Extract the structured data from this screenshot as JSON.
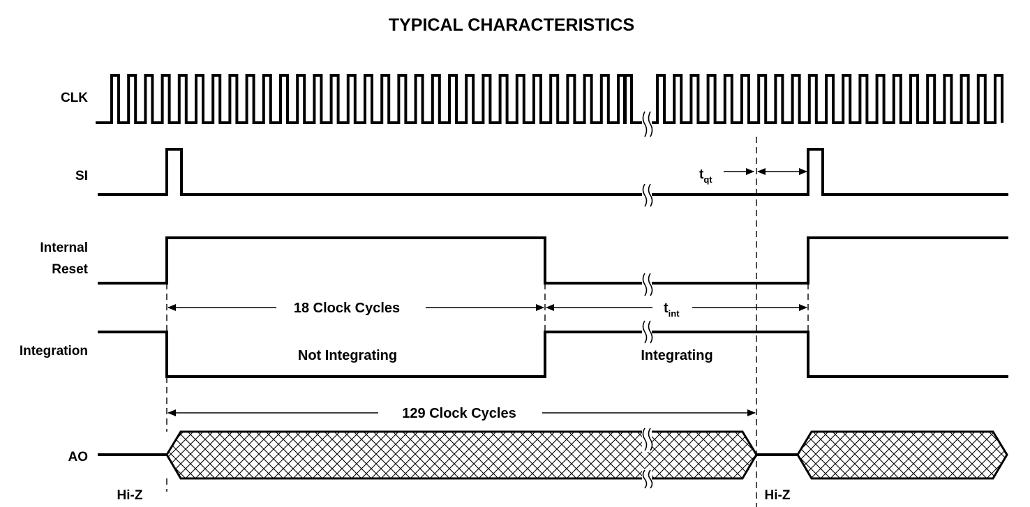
{
  "title": "TYPICAL CHARACTERISTICS",
  "signals": {
    "clk": "CLK",
    "si": "SI",
    "reset_line1": "Internal",
    "reset_line2": "Reset",
    "integration": "Integration",
    "ao": "AO"
  },
  "annotations": {
    "clock18": "18 Clock Cycles",
    "clock129": "129 Clock Cycles",
    "t_qt_main": "t",
    "t_qt_sub": "qt",
    "t_int_main": "t",
    "t_int_sub": "int",
    "not_integrating": "Not Integrating",
    "integrating": "Integrating",
    "hiz_left": "Hi-Z",
    "hiz_right": "Hi-Z"
  }
}
